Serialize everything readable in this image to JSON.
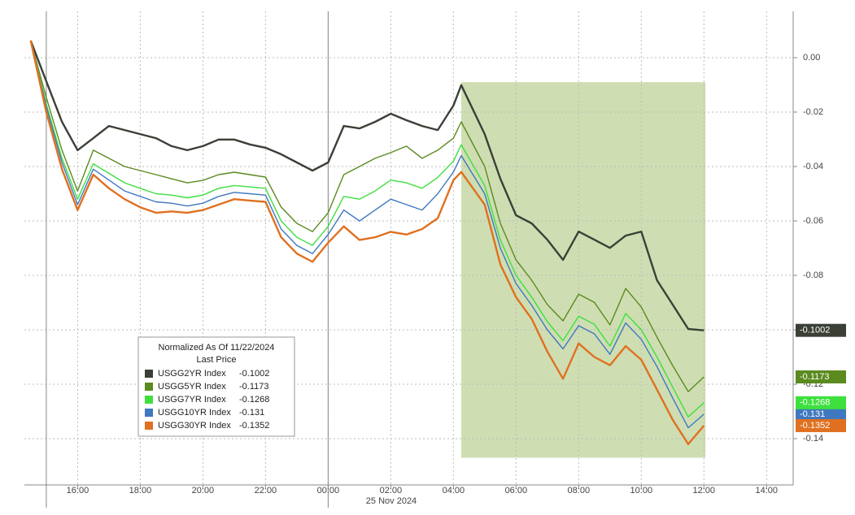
{
  "chart_data": {
    "type": "line",
    "x_sublabel": "25 Nov 2024",
    "legend_title": "Normalized As Of 11/22/2024",
    "legend_subtitle": "Last Price",
    "xlim": [
      14.3,
      38.85
    ],
    "ylim": [
      -0.157,
      0.017
    ],
    "grid": true,
    "separators": [
      15,
      24
    ],
    "highlight": {
      "x": [
        28.25,
        36.05
      ],
      "y": [
        -0.147,
        -0.009
      ],
      "color": "#c5d8a5"
    },
    "xticks": [
      {
        "value": 16,
        "label": "16:00"
      },
      {
        "value": 18,
        "label": "18:00"
      },
      {
        "value": 20,
        "label": "20:00"
      },
      {
        "value": 22,
        "label": "22:00"
      },
      {
        "value": 24,
        "label": "00:00"
      },
      {
        "value": 26,
        "label": "02:00"
      },
      {
        "value": 28,
        "label": "04:00"
      },
      {
        "value": 30,
        "label": "06:00"
      },
      {
        "value": 32,
        "label": "08:00"
      },
      {
        "value": 34,
        "label": "10:00"
      },
      {
        "value": 36,
        "label": "12:00"
      },
      {
        "value": 38,
        "label": "14:00"
      }
    ],
    "yticks": [
      {
        "value": 0,
        "label": "0.00"
      },
      -0.02,
      -0.04,
      -0.06,
      -0.08,
      {
        "value": -0.1,
        "label": "-0.10"
      },
      -0.12,
      -0.14
    ],
    "x": [
      14.5,
      15,
      15.5,
      16,
      16.5,
      17,
      17.5,
      18,
      18.5,
      19,
      19.5,
      20,
      20.5,
      21,
      21.5,
      22,
      22.5,
      23,
      23.5,
      24,
      24.5,
      25,
      25.5,
      26,
      26.5,
      27,
      27.5,
      28,
      28.25,
      29,
      29.5,
      30,
      30.5,
      31,
      31.5,
      32,
      32.5,
      33,
      33.5,
      34,
      34.5,
      35,
      35.5,
      36
    ],
    "series": [
      {
        "name": "USGG2YR Index",
        "last": -0.1002,
        "color": "#3b4037",
        "values": [
          0.0063,
          -0.0087,
          -0.0236,
          -0.034,
          -0.0296,
          -0.0251,
          -0.0266,
          -0.0281,
          -0.0296,
          -0.0325,
          -0.034,
          -0.0325,
          -0.0301,
          -0.0301,
          -0.0319,
          -0.0331,
          -0.0355,
          -0.0385,
          -0.0415,
          -0.0385,
          -0.0251,
          -0.026,
          -0.0236,
          -0.0206,
          -0.023,
          -0.0251,
          -0.0266,
          -0.0176,
          -0.0101,
          -0.0281,
          -0.0445,
          -0.0579,
          -0.0609,
          -0.0669,
          -0.0743,
          -0.0639,
          -0.0669,
          -0.0699,
          -0.0654,
          -0.0639,
          -0.0818,
          -0.0907,
          -0.0997,
          -0.1002
        ]
      },
      {
        "name": "USGG5YR Index",
        "last": -0.1173,
        "color": "#5b8a1f",
        "values": [
          0.0063,
          -0.0146,
          -0.034,
          -0.049,
          -0.034,
          -0.037,
          -0.04,
          -0.0415,
          -0.043,
          -0.0445,
          -0.046,
          -0.0451,
          -0.043,
          -0.0421,
          -0.043,
          -0.0439,
          -0.0549,
          -0.0609,
          -0.0639,
          -0.057,
          -0.043,
          -0.04,
          -0.037,
          -0.0349,
          -0.0325,
          -0.037,
          -0.034,
          -0.0296,
          -0.0236,
          -0.04,
          -0.0609,
          -0.0743,
          -0.0818,
          -0.0907,
          -0.0967,
          -0.0869,
          -0.0899,
          -0.0982,
          -0.0848,
          -0.0916,
          -0.1027,
          -0.1131,
          -0.1227,
          -0.1173
        ]
      },
      {
        "name": "USGG7YR Index",
        "last": -0.1268,
        "color": "#3ee03e",
        "values": [
          0.0063,
          -0.017,
          -0.037,
          -0.052,
          -0.039,
          -0.0425,
          -0.046,
          -0.048,
          -0.05,
          -0.0505,
          -0.0515,
          -0.0505,
          -0.048,
          -0.047,
          -0.0475,
          -0.048,
          -0.06,
          -0.066,
          -0.069,
          -0.062,
          -0.051,
          -0.052,
          -0.049,
          -0.045,
          -0.046,
          -0.048,
          -0.044,
          -0.038,
          -0.032,
          -0.047,
          -0.067,
          -0.08,
          -0.088,
          -0.097,
          -0.104,
          -0.095,
          -0.098,
          -0.106,
          -0.094,
          -0.1,
          -0.11,
          -0.121,
          -0.132,
          -0.1268
        ]
      },
      {
        "name": "USGG10YR Index",
        "last": -0.131,
        "color": "#3f78c0",
        "values": [
          0.0063,
          -0.018,
          -0.0385,
          -0.054,
          -0.041,
          -0.045,
          -0.049,
          -0.051,
          -0.053,
          -0.0535,
          -0.0545,
          -0.0535,
          -0.051,
          -0.0495,
          -0.05,
          -0.0505,
          -0.063,
          -0.069,
          -0.072,
          -0.065,
          -0.056,
          -0.06,
          -0.056,
          -0.052,
          -0.054,
          -0.056,
          -0.05,
          -0.042,
          -0.036,
          -0.05,
          -0.07,
          -0.083,
          -0.091,
          -0.1,
          -0.107,
          -0.0985,
          -0.1015,
          -0.109,
          -0.0975,
          -0.1035,
          -0.1135,
          -0.125,
          -0.136,
          -0.131
        ]
      },
      {
        "name": "USGG30YR Index",
        "last": -0.1352,
        "color": "#e07020",
        "values": [
          0.0063,
          -0.02,
          -0.041,
          -0.056,
          -0.043,
          -0.048,
          -0.052,
          -0.055,
          -0.057,
          -0.0565,
          -0.057,
          -0.056,
          -0.054,
          -0.052,
          -0.0525,
          -0.053,
          -0.066,
          -0.072,
          -0.075,
          -0.068,
          -0.062,
          -0.067,
          -0.066,
          -0.064,
          -0.065,
          -0.063,
          -0.059,
          -0.045,
          -0.042,
          -0.054,
          -0.076,
          -0.088,
          -0.096,
          -0.108,
          -0.118,
          -0.105,
          -0.11,
          -0.113,
          -0.106,
          -0.111,
          -0.122,
          -0.133,
          -0.142,
          -0.1352
        ]
      }
    ]
  }
}
